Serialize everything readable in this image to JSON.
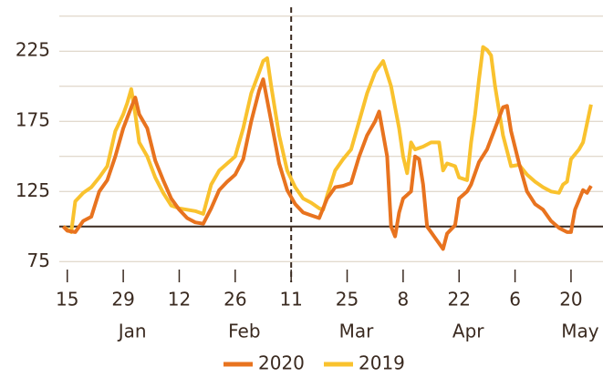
{
  "chart_data": {
    "type": "line",
    "series": [
      {
        "name": "2020",
        "color": "#e8731f",
        "x": [
          "01-14",
          "01-15",
          "01-17",
          "01-19",
          "01-21",
          "01-23",
          "01-25",
          "01-27",
          "01-29",
          "01-31",
          "02-01",
          "02-02",
          "02-04",
          "02-06",
          "02-08",
          "02-10",
          "02-12",
          "02-14",
          "02-16",
          "02-18",
          "02-20",
          "02-22",
          "02-24",
          "02-26",
          "02-28",
          "03-01",
          "03-03",
          "03-04",
          "03-06",
          "03-08",
          "03-10",
          "03-12",
          "03-14",
          "03-16",
          "03-18",
          "03-20",
          "03-22",
          "03-24",
          "03-26",
          "03-28",
          "03-30",
          "04-01",
          "04-02",
          "04-04",
          "04-05",
          "04-06",
          "04-07",
          "04-08",
          "04-10",
          "04-11",
          "04-12",
          "04-13",
          "04-14",
          "04-16",
          "04-18",
          "04-19",
          "04-21",
          "04-22",
          "04-24",
          "04-25",
          "04-27",
          "04-29",
          "05-01",
          "05-03",
          "05-04",
          "05-05",
          "05-07",
          "05-09",
          "05-11",
          "05-13",
          "05-15",
          "05-17",
          "05-19",
          "05-20",
          "05-21",
          "05-23",
          "05-24",
          "05-25"
        ],
        "values": [
          100,
          97,
          96,
          104,
          107,
          125,
          133,
          150,
          170,
          185,
          192,
          180,
          170,
          147,
          133,
          120,
          112,
          106,
          103,
          102,
          113,
          126,
          132,
          137,
          148,
          175,
          197,
          205,
          175,
          145,
          126,
          116,
          110,
          108,
          106,
          120,
          128,
          129,
          131,
          150,
          165,
          175,
          182,
          150,
          100,
          93,
          110,
          120,
          125,
          150,
          148,
          130,
          100,
          92,
          84,
          95,
          101,
          120,
          125,
          130,
          146,
          155,
          170,
          185,
          186,
          168,
          145,
          125,
          116,
          112,
          104,
          99,
          96,
          96,
          112,
          126,
          124,
          129
        ]
      },
      {
        "name": "2019",
        "color": "#f9c22e",
        "x": [
          "01-14",
          "01-15",
          "01-16",
          "01-17",
          "01-19",
          "01-21",
          "01-23",
          "01-25",
          "01-27",
          "01-29",
          "01-30",
          "01-31",
          "02-01",
          "02-02",
          "02-04",
          "02-06",
          "02-08",
          "02-10",
          "02-12",
          "02-14",
          "02-16",
          "02-18",
          "02-20",
          "02-22",
          "02-24",
          "02-26",
          "02-28",
          "03-01",
          "03-03",
          "03-04",
          "03-05",
          "03-06",
          "03-08",
          "03-10",
          "03-12",
          "03-14",
          "03-16",
          "03-18",
          "03-19",
          "03-20",
          "03-22",
          "03-24",
          "03-26",
          "03-28",
          "03-30",
          "04-01",
          "04-03",
          "04-05",
          "04-07",
          "04-08",
          "04-09",
          "04-10",
          "04-11",
          "04-13",
          "04-15",
          "04-17",
          "04-18",
          "04-19",
          "04-21",
          "04-22",
          "04-24",
          "04-25",
          "04-26",
          "04-27",
          "04-28",
          "04-29",
          "04-30",
          "05-01",
          "05-03",
          "05-05",
          "05-07",
          "05-09",
          "05-11",
          "05-13",
          "05-15",
          "05-17",
          "05-18",
          "05-19",
          "05-20",
          "05-22",
          "05-23",
          "05-25"
        ],
        "values": [
          100,
          98,
          96,
          118,
          124,
          128,
          135,
          143,
          168,
          180,
          188,
          198,
          180,
          160,
          150,
          135,
          124,
          115,
          113,
          112,
          111,
          109,
          130,
          140,
          145,
          150,
          170,
          195,
          210,
          218,
          220,
          200,
          165,
          140,
          128,
          120,
          117,
          113,
          112,
          122,
          140,
          148,
          155,
          175,
          195,
          210,
          218,
          200,
          170,
          150,
          138,
          160,
          155,
          157,
          160,
          160,
          140,
          145,
          143,
          135,
          133,
          160,
          180,
          205,
          228,
          226,
          222,
          200,
          165,
          143,
          144,
          137,
          132,
          128,
          125,
          124,
          130,
          132,
          148,
          155,
          160,
          187
        ]
      }
    ],
    "ylim": [
      70,
      255
    ],
    "yticks": [
      75,
      125,
      175,
      225
    ],
    "minor_yticks": [
      100,
      150,
      200,
      250
    ],
    "grid": true,
    "reference_line": 100,
    "vline": "03-11",
    "xlim": [
      "01-13",
      "05-28"
    ],
    "xticks": [
      {
        "value": "01-15",
        "label": "15"
      },
      {
        "value": "01-29",
        "label": "29"
      },
      {
        "value": "02-12",
        "label": "12"
      },
      {
        "value": "02-26",
        "label": "26"
      },
      {
        "value": "03-11",
        "label": "11"
      },
      {
        "value": "03-25",
        "label": "25"
      },
      {
        "value": "04-08",
        "label": "8"
      },
      {
        "value": "04-22",
        "label": "22"
      },
      {
        "value": "05-06",
        "label": "6"
      },
      {
        "value": "05-20",
        "label": "20"
      }
    ],
    "month_labels": [
      {
        "value": "01-29",
        "label": "Jan"
      },
      {
        "value": "02-26",
        "label": "Feb"
      },
      {
        "value": "03-25",
        "label": "Mar"
      },
      {
        "value": "04-22",
        "label": "Apr"
      },
      {
        "value": "05-20",
        "label": "May"
      }
    ],
    "legend": "bottom"
  }
}
